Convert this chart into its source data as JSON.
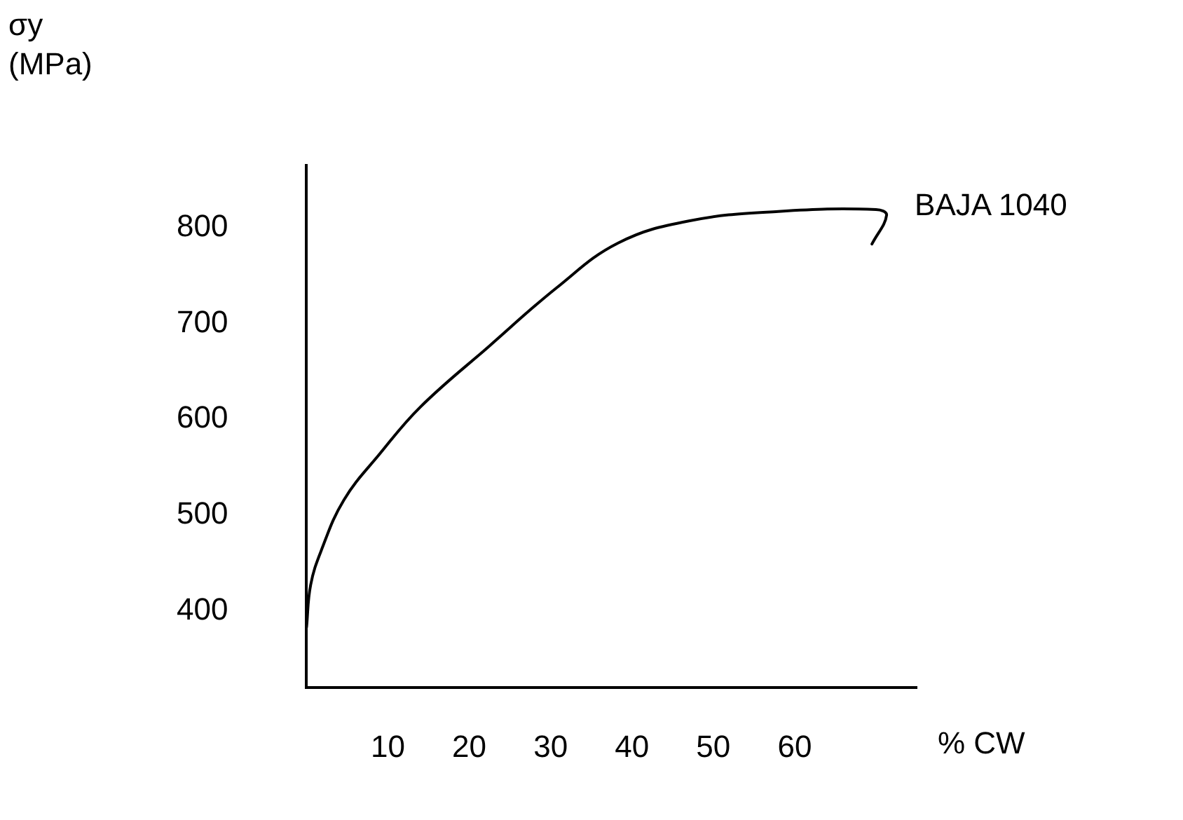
{
  "chart_data": {
    "type": "line",
    "ylabel": "σy (MPa)",
    "xlabel": "% CW",
    "series": [
      {
        "name": "BAJA 1040",
        "color": "#000000",
        "x": [
          0,
          0.5,
          1.8,
          4.6,
          9,
          14,
          22.4,
          30.7,
          38.3,
          47,
          58,
          70,
          71.3,
          69.5
        ],
        "values": [
          383,
          427,
          463,
          516,
          564,
          613,
          676,
          737,
          784,
          807,
          817,
          819,
          813,
          783
        ]
      }
    ],
    "xlim": [
      0,
      75
    ],
    "xticks": [
      10,
      20,
      30,
      40,
      50,
      60
    ],
    "ylim": [
      320,
      865
    ],
    "yticks": [
      400,
      500,
      600,
      700,
      800
    ],
    "grid": false,
    "legend": false,
    "marker": "none",
    "line_style": "solid"
  }
}
